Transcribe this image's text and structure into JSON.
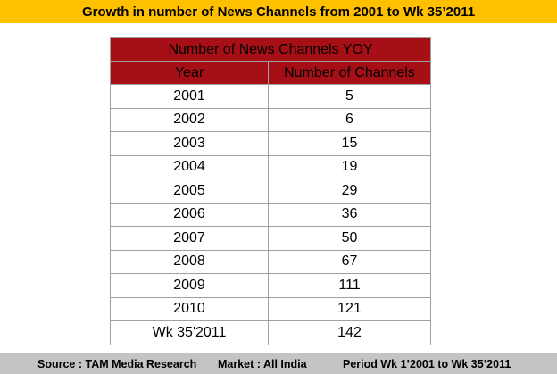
{
  "title": "Growth in number of News Channels from 2001 to Wk 35’2011",
  "table": {
    "caption": "Number of News Channels YOY",
    "headers": [
      "Year",
      "Number of Channels"
    ],
    "rows": [
      [
        "2001",
        "5"
      ],
      [
        "2002",
        "6"
      ],
      [
        "2003",
        "15"
      ],
      [
        "2004",
        "19"
      ],
      [
        "2005",
        "29"
      ],
      [
        "2006",
        "36"
      ],
      [
        "2007",
        "50"
      ],
      [
        "2008",
        "67"
      ],
      [
        "2009",
        "111"
      ],
      [
        "2010",
        "121"
      ],
      [
        "Wk 35'2011",
        "142"
      ]
    ]
  },
  "footer": {
    "source": "Source : TAM Media Research",
    "market": "Market : All India",
    "period": "Period Wk 1’2001 to Wk 35’2011"
  },
  "colors": {
    "title_bg": "#ffc000",
    "header_bg": "#a50f15",
    "footer_bg": "#c4c4c4"
  }
}
